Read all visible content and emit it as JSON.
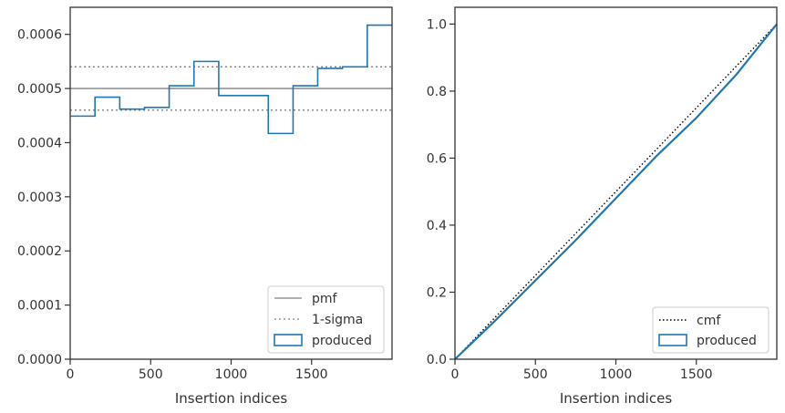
{
  "chart_data": [
    {
      "type": "step",
      "title": "",
      "xlabel": "Insertion indices",
      "ylabel": "",
      "xlim": [
        0,
        2000
      ],
      "ylim": [
        0,
        0.00065
      ],
      "xticks": [
        0,
        500,
        1000,
        1500
      ],
      "xtick_labels": [
        "0",
        "500",
        "1000",
        "1500"
      ],
      "yticks": [
        0,
        0.0001,
        0.0002,
        0.0003,
        0.0004,
        0.0005,
        0.0006
      ],
      "ytick_labels": [
        "0.0000",
        "0.0001",
        "0.0002",
        "0.0003",
        "0.0004",
        "0.0005",
        "0.0006"
      ],
      "grid": false,
      "legend_position": "lower-right",
      "reference_lines": [
        {
          "name": "pmf",
          "y": 0.0005,
          "style": "solid",
          "color": "#808080"
        },
        {
          "name": "1-sigma",
          "y": 0.00054,
          "style": "dotted",
          "color": "#808080"
        },
        {
          "name": "1-sigma",
          "y": 0.00046,
          "style": "dotted",
          "color": "#808080"
        }
      ],
      "series": [
        {
          "name": "produced",
          "color": "#1f77b4",
          "bin_edges": [
            0,
            154,
            308,
            462,
            615,
            769,
            923,
            1077,
            1231,
            1385,
            1538,
            1692,
            1846,
            2000
          ],
          "values": [
            0.000449,
            0.000484,
            0.000462,
            0.000465,
            0.000505,
            0.00055,
            0.000487,
            0.000487,
            0.000417,
            0.000505,
            0.000537,
            0.00054,
            0.000617
          ]
        }
      ],
      "legend": [
        {
          "label": "pmf",
          "kind": "solid-line"
        },
        {
          "label": "1-sigma",
          "kind": "dotted-line"
        },
        {
          "label": "produced",
          "kind": "patch"
        }
      ]
    },
    {
      "type": "line",
      "title": "",
      "xlabel": "Insertion indices",
      "ylabel": "",
      "xlim": [
        0,
        2000
      ],
      "ylim": [
        0,
        1.05
      ],
      "xticks": [
        0,
        500,
        1000,
        1500
      ],
      "xtick_labels": [
        "0",
        "500",
        "1000",
        "1500"
      ],
      "yticks": [
        0,
        0.2,
        0.4,
        0.6,
        0.8,
        1.0
      ],
      "ytick_labels": [
        "0.0",
        "0.2",
        "0.4",
        "0.6",
        "0.8",
        "1.0"
      ],
      "grid": false,
      "legend_position": "lower-right",
      "series": [
        {
          "name": "cmf",
          "style": "dotted",
          "color": "#000000",
          "x": [
            0,
            2000
          ],
          "y": [
            0,
            1.0
          ]
        },
        {
          "name": "produced",
          "style": "solid",
          "color": "#1f77b4",
          "x": [
            0,
            250,
            500,
            750,
            1000,
            1250,
            1500,
            1750,
            2000
          ],
          "y": [
            0,
            0.115,
            0.235,
            0.355,
            0.48,
            0.605,
            0.72,
            0.85,
            1.0
          ]
        }
      ],
      "legend": [
        {
          "label": "cmf",
          "kind": "dotted-line"
        },
        {
          "label": "produced",
          "kind": "patch"
        }
      ]
    }
  ]
}
